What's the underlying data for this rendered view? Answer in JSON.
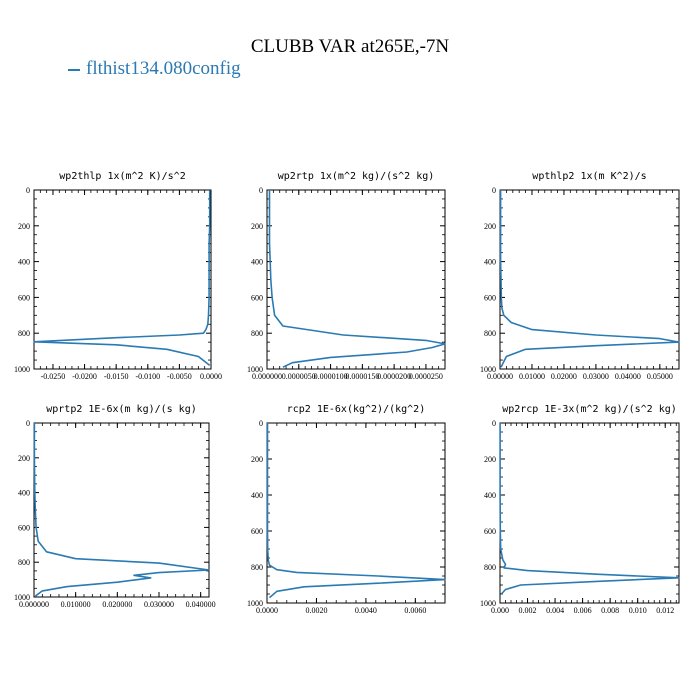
{
  "title": "CLUBB VAR at265E,-7N",
  "legend": {
    "label": "flthist134.080config",
    "color": "#2a7ab4"
  },
  "chart_data": [
    {
      "type": "line",
      "title": "wp2thlp   1x(m^2 K)/s^2",
      "xlim": [
        -0.028,
        0.0
      ],
      "ylim": [
        1000,
        0
      ],
      "y_ticks": [
        0,
        200,
        400,
        600,
        800,
        1000
      ],
      "x_ticks": [
        "-0.0250",
        "-0.0200",
        "-0.0150",
        "-0.0100",
        "-0.0050",
        "0.0000"
      ],
      "x_tick_values": [
        -0.025,
        -0.02,
        -0.015,
        -0.01,
        -0.005,
        0.0
      ],
      "series": [
        {
          "x": [
            -0.0002,
            -0.0002,
            -0.0002,
            -0.0003,
            -0.0003,
            -0.0003,
            -0.0003,
            -0.0004,
            -0.0005,
            -0.0008,
            -0.0012,
            -0.005,
            -0.015,
            -0.028,
            -0.015,
            -0.007,
            -0.002,
            -0.0002
          ],
          "y": [
            0,
            100,
            200,
            300,
            400,
            500,
            600,
            700,
            750,
            780,
            800,
            810,
            825,
            848,
            865,
            890,
            930,
            980
          ]
        }
      ]
    },
    {
      "type": "line",
      "title": "wp2rtp   1x(m^2 kg)/(s^2 kg)",
      "xlim": [
        0.0,
        2.8e-05
      ],
      "ylim": [
        1000,
        0
      ],
      "y_ticks": [
        0,
        200,
        400,
        600,
        800,
        1000
      ],
      "x_ticks": [
        "0.000000",
        "0.0000050",
        "0.0000100",
        "0.0000150",
        "0.0000200",
        "0.0000250"
      ],
      "x_tick_values": [
        0.0,
        5e-06,
        1e-05,
        1.5e-05,
        2e-05,
        2.5e-05
      ],
      "series": [
        {
          "x": [
            4e-07,
            4e-07,
            4e-07,
            4e-07,
            5e-07,
            6e-07,
            8e-07,
            1.2e-06,
            2.5e-06,
            1.2e-05,
            2.5e-05,
            2.8e-05,
            2.6e-05,
            2.2e-05,
            1e-05,
            4e-06,
            2.5e-06
          ],
          "y": [
            0,
            100,
            200,
            300,
            400,
            500,
            600,
            700,
            760,
            810,
            840,
            860,
            880,
            905,
            935,
            965,
            990
          ]
        }
      ]
    },
    {
      "type": "line",
      "title": "wpthlp2   1x(m K^2)/s",
      "xlim": [
        0.0,
        0.056
      ],
      "ylim": [
        1000,
        0
      ],
      "y_ticks": [
        0,
        200,
        400,
        600,
        800,
        1000
      ],
      "x_ticks": [
        "0.00000",
        "0.01000",
        "0.02000",
        "0.03000",
        "0.04000",
        "0.05000"
      ],
      "x_tick_values": [
        0.0,
        0.01,
        0.02,
        0.03,
        0.04,
        0.05
      ],
      "series": [
        {
          "x": [
            0.0002,
            0.0002,
            0.0002,
            0.0003,
            0.0004,
            0.0006,
            0.0012,
            0.0035,
            0.01,
            0.03,
            0.05,
            0.056,
            0.03,
            0.008,
            0.002,
            0.0003
          ],
          "y": [
            0,
            200,
            400,
            500,
            600,
            660,
            700,
            740,
            780,
            810,
            830,
            850,
            870,
            890,
            930,
            990
          ]
        }
      ]
    },
    {
      "type": "line",
      "title": "wprtp2   1E-6x(m kg)/(s kg)",
      "xlim": [
        0.0,
        0.042
      ],
      "ylim": [
        1000,
        0
      ],
      "y_ticks": [
        0,
        200,
        400,
        600,
        800,
        1000
      ],
      "x_ticks": [
        "0.000000",
        "0.010000",
        "0.020000",
        "0.030000",
        "0.040000"
      ],
      "x_tick_values": [
        0.0,
        0.01,
        0.02,
        0.03,
        0.04
      ],
      "series": [
        {
          "x": [
            0.0001,
            0.0001,
            0.0002,
            0.0003,
            0.0005,
            0.001,
            0.003,
            0.01,
            0.03,
            0.042,
            0.03,
            0.024,
            0.028,
            0.02,
            0.008,
            0.002,
            0.0003
          ],
          "y": [
            0,
            200,
            400,
            500,
            600,
            680,
            740,
            780,
            805,
            845,
            860,
            875,
            890,
            915,
            940,
            965,
            995
          ]
        }
      ]
    },
    {
      "type": "line",
      "title": "rcp2   1E-6x(kg^2)/(kg^2)",
      "xlim": [
        0.0,
        0.0072
      ],
      "ylim": [
        1000,
        0
      ],
      "y_ticks": [
        0,
        200,
        400,
        600,
        800,
        1000
      ],
      "x_ticks": [
        "0.0000",
        "0.0020",
        "0.0040",
        "0.0060"
      ],
      "x_tick_values": [
        0.0,
        0.002,
        0.004,
        0.006
      ],
      "series": [
        {
          "x": [
            2e-05,
            2e-05,
            2e-05,
            2e-05,
            3e-05,
            5e-05,
            0.0001,
            0.0004,
            0.0012,
            0.0045,
            0.0072,
            0.0045,
            0.0015,
            0.0004,
            0.0001
          ],
          "y": [
            0,
            200,
            400,
            600,
            700,
            760,
            790,
            815,
            830,
            850,
            870,
            890,
            910,
            935,
            970
          ]
        }
      ]
    },
    {
      "type": "line",
      "title": "wp2rcp   1E-3x(m^2 kg)/(s^2 kg)",
      "xlim": [
        0.0,
        0.013
      ],
      "ylim": [
        1000,
        0
      ],
      "y_ticks": [
        0,
        200,
        400,
        600,
        800,
        1000
      ],
      "x_ticks": [
        "0.000",
        "0.002",
        "0.004",
        "0.006",
        "0.008",
        "0.010",
        "0.012"
      ],
      "x_tick_values": [
        0.0,
        0.002,
        0.004,
        0.006,
        0.008,
        0.01,
        0.012
      ],
      "series": [
        {
          "x": [
            1e-05,
            1e-05,
            1e-05,
            2e-05,
            5e-05,
            0.0002,
            0.0004,
            0.0003,
            0.002,
            0.007,
            0.013,
            0.007,
            0.0015,
            0.0004,
            0.0001
          ],
          "y": [
            0,
            200,
            400,
            600,
            700,
            760,
            785,
            805,
            820,
            840,
            860,
            880,
            900,
            925,
            950
          ]
        }
      ]
    }
  ]
}
